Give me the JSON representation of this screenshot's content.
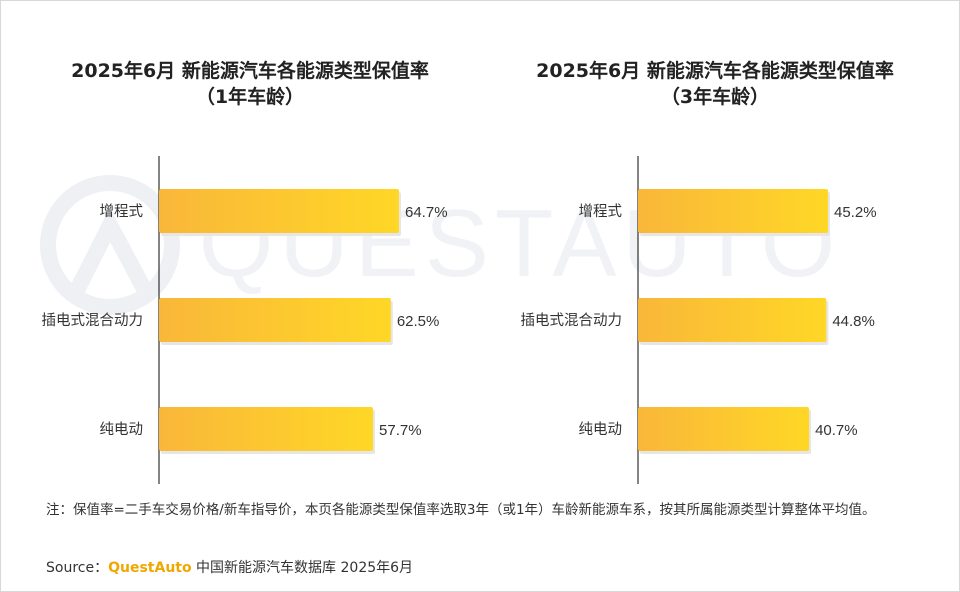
{
  "chart_data": [
    {
      "type": "bar",
      "orientation": "horizontal",
      "title_line1": "2025年6月 新能源汽车各能源类型保值率",
      "title_line2": "（1年车龄）",
      "categories": [
        "增程式",
        "插电式混合动力",
        "纯电动"
      ],
      "values": [
        64.7,
        62.5,
        57.7
      ],
      "value_labels": [
        "64.7%",
        "62.5%",
        "57.7%"
      ],
      "bar_color_start": "#f9b73a",
      "bar_color_end": "#ffd726",
      "grid": false
    },
    {
      "type": "bar",
      "orientation": "horizontal",
      "title_line1": "2025年6月 新能源汽车各能源类型保值率",
      "title_line2": "（3年车龄）",
      "categories": [
        "增程式",
        "插电式混合动力",
        "纯电动"
      ],
      "values": [
        45.2,
        44.8,
        40.7
      ],
      "value_labels": [
        "45.2%",
        "44.8%",
        "40.7%"
      ],
      "bar_color_start": "#f9b73a",
      "bar_color_end": "#ffd726",
      "grid": false
    }
  ],
  "footer": {
    "note": "注：保值率=二手车交易价格/新车指导价，本页各能源类型保值率选取3年（或1年）车龄新能源车系，按其所属能源类型计算整体平均值。",
    "source_prefix": "Source：",
    "source_brand": "QuestAuto",
    "source_rest": " 中国新能源汽车数据库 2025年6月"
  },
  "watermark_text": "QUESTAUTO"
}
